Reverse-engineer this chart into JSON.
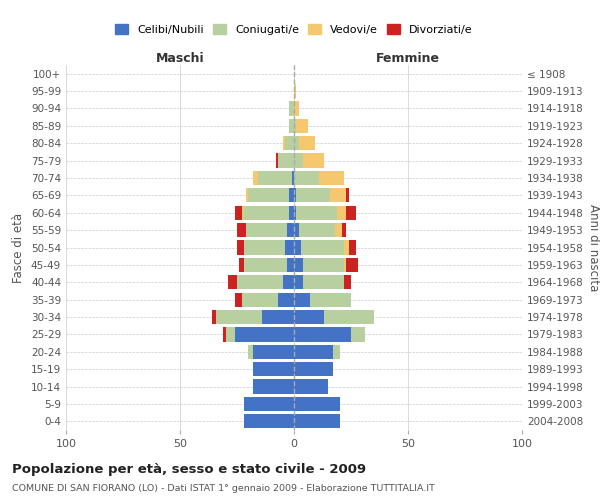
{
  "age_groups": [
    "0-4",
    "5-9",
    "10-14",
    "15-19",
    "20-24",
    "25-29",
    "30-34",
    "35-39",
    "40-44",
    "45-49",
    "50-54",
    "55-59",
    "60-64",
    "65-69",
    "70-74",
    "75-79",
    "80-84",
    "85-89",
    "90-94",
    "95-99",
    "100+"
  ],
  "birth_years": [
    "2004-2008",
    "1999-2003",
    "1994-1998",
    "1989-1993",
    "1984-1988",
    "1979-1983",
    "1974-1978",
    "1969-1973",
    "1964-1968",
    "1959-1963",
    "1954-1958",
    "1949-1953",
    "1944-1948",
    "1939-1943",
    "1934-1938",
    "1929-1933",
    "1924-1928",
    "1919-1923",
    "1914-1918",
    "1909-1913",
    "≤ 1908"
  ],
  "male": {
    "celibe": [
      22,
      22,
      18,
      18,
      18,
      26,
      14,
      7,
      5,
      3,
      4,
      3,
      2,
      2,
      1,
      0,
      0,
      0,
      0,
      0,
      0
    ],
    "coniugato": [
      0,
      0,
      0,
      0,
      2,
      4,
      20,
      16,
      20,
      19,
      18,
      18,
      20,
      18,
      15,
      7,
      4,
      2,
      2,
      0,
      0
    ],
    "vedovo": [
      0,
      0,
      0,
      0,
      0,
      0,
      0,
      0,
      0,
      0,
      0,
      0,
      1,
      1,
      2,
      0,
      1,
      0,
      0,
      0,
      0
    ],
    "divorziato": [
      0,
      0,
      0,
      0,
      0,
      1,
      2,
      3,
      4,
      2,
      3,
      4,
      3,
      0,
      0,
      1,
      0,
      0,
      0,
      0,
      0
    ]
  },
  "female": {
    "nubile": [
      20,
      20,
      15,
      17,
      17,
      25,
      13,
      7,
      4,
      4,
      3,
      2,
      1,
      1,
      0,
      0,
      0,
      0,
      0,
      0,
      0
    ],
    "coniugata": [
      0,
      0,
      0,
      0,
      3,
      6,
      22,
      18,
      18,
      18,
      19,
      16,
      18,
      15,
      11,
      4,
      2,
      1,
      0,
      0,
      0
    ],
    "vedova": [
      0,
      0,
      0,
      0,
      0,
      0,
      0,
      0,
      0,
      1,
      2,
      3,
      4,
      7,
      11,
      9,
      7,
      5,
      2,
      1,
      0
    ],
    "divorziata": [
      0,
      0,
      0,
      0,
      0,
      0,
      0,
      0,
      3,
      5,
      3,
      2,
      4,
      1,
      0,
      0,
      0,
      0,
      0,
      0,
      0
    ]
  },
  "colors": {
    "celibe": "#4472c4",
    "coniugato": "#b8cfa0",
    "vedovo": "#f5c76e",
    "divorziato": "#cc2222"
  },
  "xlim": 100,
  "title": "Popolazione per età, sesso e stato civile - 2009",
  "subtitle": "COMUNE DI SAN FIORANO (LO) - Dati ISTAT 1° gennaio 2009 - Elaborazione TUTTITALIA.IT",
  "xlabel_left": "Maschi",
  "xlabel_right": "Femmine",
  "ylabel_left": "Fasce di età",
  "ylabel_right": "Anni di nascita",
  "legend_labels": [
    "Celibi/Nubili",
    "Coniugati/e",
    "Vedovi/e",
    "Divorziati/e"
  ]
}
